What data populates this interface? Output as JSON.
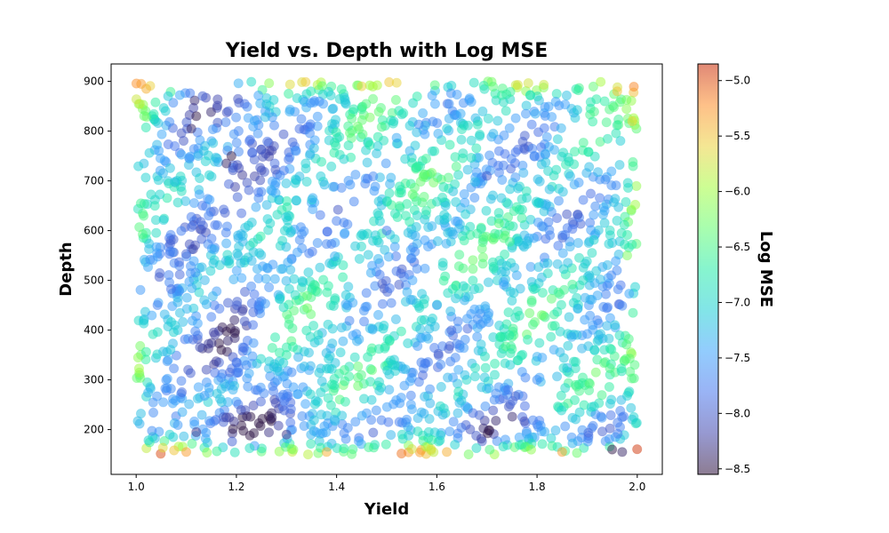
{
  "chart_data": {
    "type": "scatter",
    "title": "Yield vs. Depth with Log MSE",
    "xlabel": "Yield",
    "ylabel": "Depth",
    "colorbar_label": "Log MSE",
    "xlim": [
      0.95,
      2.05
    ],
    "ylim": [
      110,
      935
    ],
    "xticks": [
      1.0,
      1.2,
      1.4,
      1.6,
      1.8,
      2.0
    ],
    "xtick_labels": [
      "1.0",
      "1.2",
      "1.4",
      "1.6",
      "1.8",
      "2.0"
    ],
    "yticks": [
      200,
      300,
      400,
      500,
      600,
      700,
      800,
      900
    ],
    "ytick_labels": [
      "200",
      "300",
      "400",
      "500",
      "600",
      "700",
      "800",
      "900"
    ],
    "clim": [
      -8.55,
      -4.85
    ],
    "cticks": [
      -8.5,
      -8.0,
      -7.5,
      -7.0,
      -6.5,
      -6.0,
      -5.5,
      -5.0
    ],
    "ctick_labels": [
      "−8.5",
      "−8.0",
      "−7.5",
      "−7.0",
      "−6.5",
      "−6.0",
      "−5.5",
      "−5.0"
    ],
    "colormap": "turbo",
    "marker_alpha": 0.5,
    "x_range_of_points": [
      1.0,
      2.0
    ],
    "y_range_of_points": [
      150,
      900
    ],
    "grid": false,
    "colorbar_position": "right",
    "points": [
      {
        "x": 1.01,
        "y": 895,
        "c": -5.3
      },
      {
        "x": 1.02,
        "y": 885,
        "c": -5.4
      },
      {
        "x": 1.45,
        "y": 890,
        "c": -5.6
      },
      {
        "x": 1.96,
        "y": 880,
        "c": -5.5
      },
      {
        "x": 1.99,
        "y": 820,
        "c": -5.6
      },
      {
        "x": 1.12,
        "y": 830,
        "c": -8.5
      },
      {
        "x": 1.11,
        "y": 805,
        "c": -8.4
      },
      {
        "x": 1.19,
        "y": 750,
        "c": -8.5
      },
      {
        "x": 1.18,
        "y": 735,
        "c": -8.4
      },
      {
        "x": 1.17,
        "y": 360,
        "c": -8.5
      },
      {
        "x": 1.12,
        "y": 195,
        "c": -8.3
      },
      {
        "x": 1.3,
        "y": 190,
        "c": -8.3
      },
      {
        "x": 1.7,
        "y": 710,
        "c": -8.0
      },
      {
        "x": 1.95,
        "y": 160,
        "c": -8.5
      },
      {
        "x": 1.97,
        "y": 155,
        "c": -8.4
      },
      {
        "x": 1.1,
        "y": 155,
        "c": -5.3
      },
      {
        "x": 1.38,
        "y": 155,
        "c": -5.4
      },
      {
        "x": 1.62,
        "y": 155,
        "c": -5.4
      },
      {
        "x": 1.85,
        "y": 155,
        "c": -5.3
      },
      {
        "x": 1.5,
        "y": 600,
        "c": -7.8
      },
      {
        "x": 1.6,
        "y": 450,
        "c": -7.5
      },
      {
        "x": 1.8,
        "y": 300,
        "c": -7.6
      },
      {
        "x": 1.3,
        "y": 350,
        "c": -6.7
      },
      {
        "x": 1.98,
        "y": 550,
        "c": -6.2
      }
    ]
  }
}
